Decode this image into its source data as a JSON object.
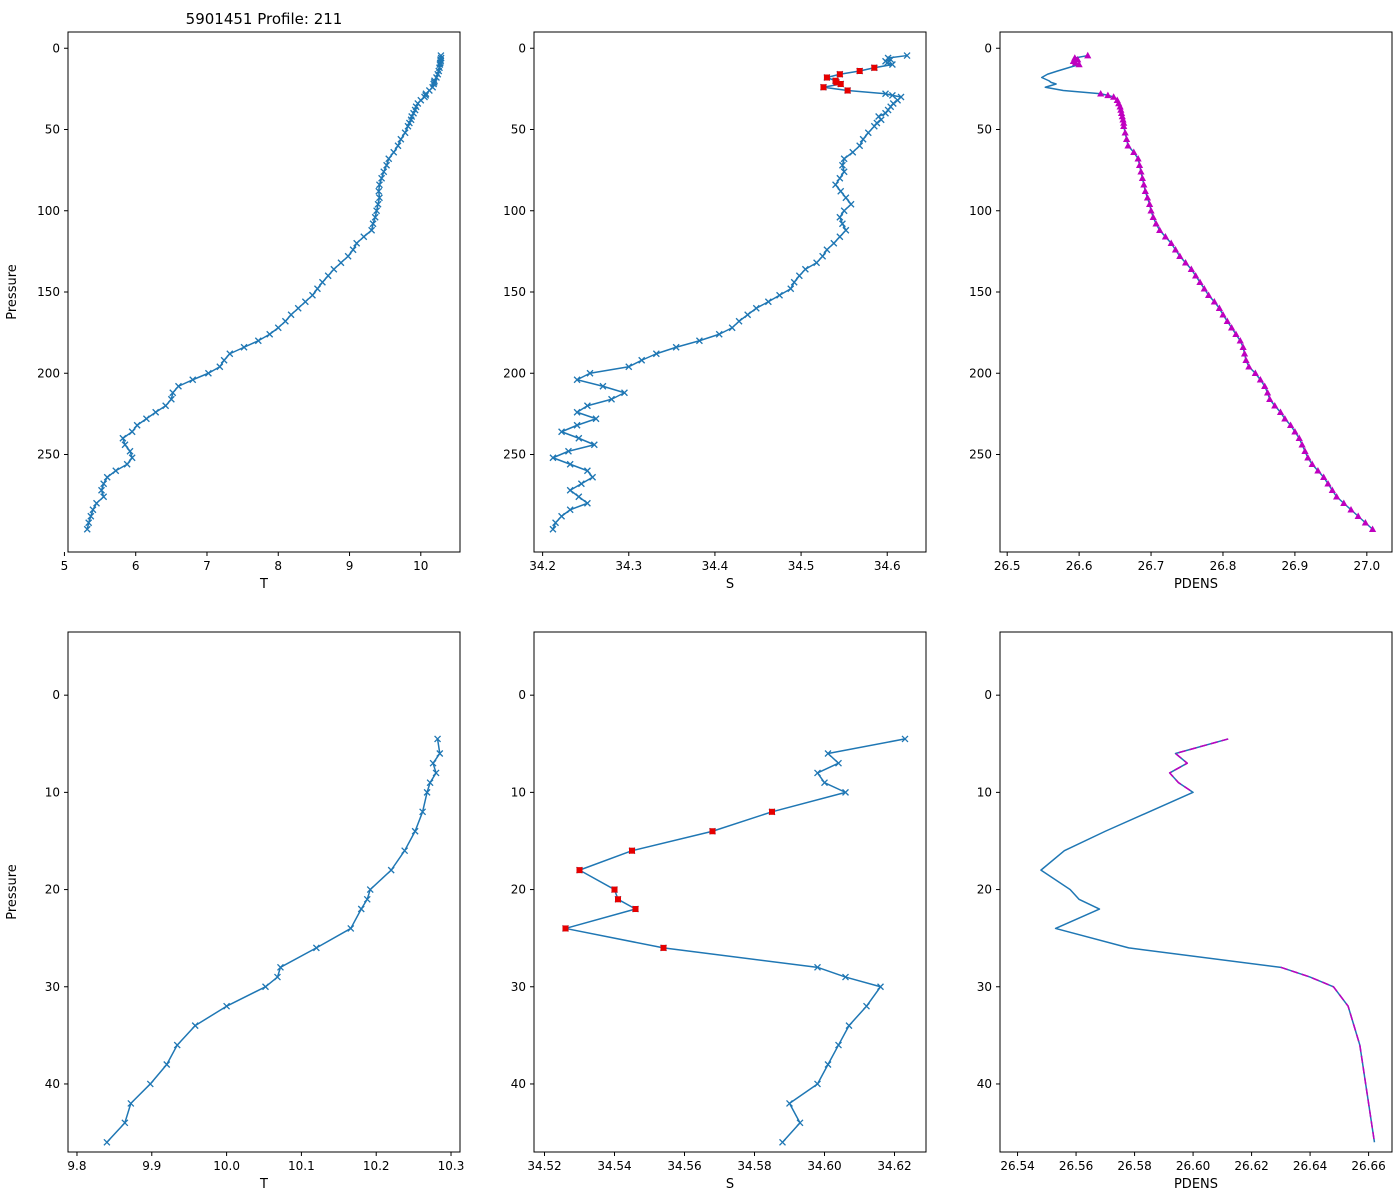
{
  "figure": {
    "title": "5901451 Profile: 211",
    "background": "#ffffff"
  },
  "colors": {
    "line_blue": "#1f77b4",
    "flag_red": "#e60000",
    "magenta": "#bf00bf",
    "axis": "#000000"
  },
  "profiles": {
    "pressure_shallow": [
      4.5,
      6,
      7,
      8,
      9,
      10,
      12,
      14,
      16,
      18,
      20,
      21,
      22,
      24,
      26,
      28,
      29,
      30,
      32,
      34,
      36,
      38,
      40,
      42,
      44,
      46
    ],
    "temp_shallow": [
      10.282,
      10.285,
      10.276,
      10.28,
      10.272,
      10.268,
      10.262,
      10.252,
      10.238,
      10.22,
      10.192,
      10.188,
      10.18,
      10.166,
      10.12,
      10.072,
      10.068,
      10.052,
      10.0,
      9.958,
      9.934,
      9.92,
      9.898,
      9.872,
      9.864,
      9.84
    ],
    "sal_shallow": [
      34.623,
      34.601,
      34.604,
      34.598,
      34.6,
      34.606,
      34.585,
      34.568,
      34.545,
      34.53,
      34.54,
      34.541,
      34.546,
      34.526,
      34.554,
      34.598,
      34.606,
      34.616,
      34.612,
      34.607,
      34.604,
      34.601,
      34.598,
      34.59,
      34.593,
      34.588
    ],
    "pdens_shallow": [
      26.612,
      26.594,
      26.598,
      26.592,
      26.595,
      26.6,
      26.585,
      26.57,
      26.556,
      26.548,
      26.558,
      26.561,
      26.568,
      26.553,
      26.578,
      26.63,
      26.64,
      26.648,
      26.653,
      26.655,
      26.657,
      26.658,
      26.659,
      26.66,
      26.661,
      26.662
    ],
    "pressure_deep": [
      48,
      52,
      56,
      60,
      64,
      68,
      72,
      76,
      80,
      84,
      88,
      92,
      96,
      100,
      104,
      108,
      112,
      116,
      120,
      124,
      128,
      132,
      136,
      140,
      144,
      148,
      152,
      156,
      160,
      164,
      168,
      172,
      176,
      180,
      184,
      188,
      192,
      196,
      200,
      204,
      208,
      212,
      216,
      220,
      224,
      228,
      232,
      236,
      240,
      244,
      248,
      252,
      256,
      260,
      264,
      268,
      272,
      276,
      280,
      284,
      288,
      292,
      296
    ],
    "temp_deep": [
      9.82,
      9.78,
      9.72,
      9.68,
      9.62,
      9.55,
      9.52,
      9.48,
      9.45,
      9.42,
      9.41,
      9.42,
      9.4,
      9.38,
      9.36,
      9.33,
      9.31,
      9.2,
      9.1,
      9.05,
      8.98,
      8.88,
      8.78,
      8.7,
      8.62,
      8.55,
      8.48,
      8.38,
      8.28,
      8.18,
      8.1,
      8.0,
      7.88,
      7.72,
      7.52,
      7.32,
      7.24,
      7.18,
      7.02,
      6.8,
      6.6,
      6.52,
      6.5,
      6.42,
      6.28,
      6.15,
      6.02,
      5.95,
      5.82,
      5.85,
      5.92,
      5.95,
      5.88,
      5.72,
      5.6,
      5.55,
      5.52,
      5.55,
      5.45,
      5.4,
      5.37,
      5.34,
      5.32
    ],
    "sal_deep": [
      34.585,
      34.578,
      34.572,
      34.568,
      34.56,
      34.55,
      34.548,
      34.55,
      34.545,
      34.54,
      34.546,
      34.552,
      34.558,
      34.55,
      34.545,
      34.548,
      34.552,
      34.545,
      34.538,
      34.53,
      34.525,
      34.518,
      34.505,
      34.498,
      34.492,
      34.488,
      34.475,
      34.462,
      34.448,
      34.438,
      34.428,
      34.42,
      34.405,
      34.382,
      34.355,
      34.332,
      34.315,
      34.3,
      34.255,
      34.24,
      34.27,
      34.295,
      34.28,
      34.252,
      34.24,
      34.262,
      34.24,
      34.222,
      34.242,
      34.26,
      34.23,
      34.212,
      34.232,
      34.252,
      34.258,
      34.245,
      34.232,
      34.242,
      34.252,
      34.232,
      34.222,
      34.215,
      34.212
    ],
    "pdens_deep": [
      26.662,
      26.664,
      26.666,
      26.668,
      26.676,
      26.682,
      26.684,
      26.686,
      26.688,
      26.69,
      26.692,
      26.695,
      26.698,
      26.7,
      26.703,
      26.707,
      26.712,
      26.72,
      26.728,
      26.734,
      26.74,
      26.748,
      26.756,
      26.762,
      26.768,
      26.774,
      26.78,
      26.788,
      26.795,
      26.8,
      26.806,
      26.812,
      26.818,
      26.824,
      26.828,
      26.83,
      26.832,
      26.836,
      26.845,
      26.852,
      26.858,
      26.862,
      26.865,
      26.872,
      26.88,
      26.886,
      26.894,
      26.9,
      26.906,
      26.91,
      26.914,
      26.918,
      26.924,
      26.932,
      26.94,
      26.946,
      26.952,
      26.958,
      26.968,
      26.978,
      26.988,
      26.998,
      27.008
    ],
    "flagged_idx": [
      6,
      7,
      8,
      9,
      10,
      11,
      12,
      13,
      14
    ],
    "good_head_idx": [
      0,
      1,
      2,
      3,
      4,
      5
    ],
    "good_tail_idx": [
      15,
      16,
      17,
      18,
      19,
      20,
      21,
      22,
      23,
      24,
      25
    ]
  },
  "chart_data": [
    {
      "id": "temp-full",
      "type": "line",
      "xlabel": "T",
      "ylabel": "Pressure",
      "xlim": [
        5.05,
        10.55
      ],
      "ylim": [
        -10,
        310
      ],
      "xticks": [
        5,
        6,
        7,
        8,
        9,
        10
      ],
      "xtick_labels": [
        "5",
        "6",
        "7",
        "8",
        "9",
        "10"
      ],
      "yticks": [
        0,
        50,
        100,
        150,
        200,
        250
      ],
      "ytick_labels": [
        "0",
        "50",
        "100",
        "150",
        "200",
        "250"
      ],
      "series": [
        {
          "name": "temperature-profile",
          "x": [
            "temp_shallow",
            "temp_deep"
          ],
          "y": [
            "pressure_shallow",
            "pressure_deep"
          ],
          "color": "line_blue",
          "marker": "x",
          "line": true
        }
      ]
    },
    {
      "id": "sal-full",
      "type": "line",
      "xlabel": "S",
      "ylabel": "",
      "xlim": [
        34.19,
        34.645
      ],
      "ylim": [
        -10,
        310
      ],
      "xticks": [
        34.2,
        34.3,
        34.4,
        34.5,
        34.6
      ],
      "xtick_labels": [
        "34.2",
        "34.3",
        "34.4",
        "34.5",
        "34.6"
      ],
      "yticks": [
        0,
        50,
        100,
        150,
        200,
        250
      ],
      "ytick_labels": [
        "0",
        "50",
        "100",
        "150",
        "200",
        "250"
      ],
      "series": [
        {
          "name": "salinity-profile",
          "x": [
            "sal_shallow",
            "sal_deep"
          ],
          "y": [
            "pressure_shallow",
            "pressure_deep"
          ],
          "color": "line_blue",
          "marker": "x",
          "line": true
        },
        {
          "name": "salinity-flagged",
          "x": "sal_shallow",
          "y": "pressure_shallow",
          "idx": "flagged_idx",
          "color": "flag_red",
          "marker": "s",
          "line": false
        }
      ]
    },
    {
      "id": "pdens-full",
      "type": "line",
      "xlabel": "PDENS",
      "ylabel": "",
      "xlim": [
        26.49,
        27.035
      ],
      "ylim": [
        -10,
        310
      ],
      "xticks": [
        26.5,
        26.6,
        26.7,
        26.8,
        26.9,
        27.0
      ],
      "xtick_labels": [
        "26.5",
        "26.6",
        "26.7",
        "26.8",
        "26.9",
        "27.0"
      ],
      "yticks": [
        0,
        50,
        100,
        150,
        200,
        250
      ],
      "ytick_labels": [
        "0",
        "50",
        "100",
        "150",
        "200",
        "250"
      ],
      "series": [
        {
          "name": "pdens-line",
          "x": [
            "pdens_shallow",
            "pdens_deep"
          ],
          "y": [
            "pressure_shallow",
            "pressure_deep"
          ],
          "color": "line_blue",
          "marker": null,
          "line": true
        },
        {
          "name": "pdens-good-shallow-top",
          "x": "pdens_shallow",
          "y": "pressure_shallow",
          "idx": "good_head_idx",
          "color": "magenta",
          "marker": "^",
          "line": false
        },
        {
          "name": "pdens-good-shallow-bottom",
          "x": "pdens_shallow",
          "y": "pressure_shallow",
          "idx": "good_tail_idx",
          "color": "magenta",
          "marker": "^",
          "line": false
        },
        {
          "name": "pdens-good-deep",
          "x": "pdens_deep",
          "y": "pressure_deep",
          "color": "magenta",
          "marker": "^",
          "line": false
        }
      ]
    },
    {
      "id": "temp-zoom",
      "type": "line",
      "xlabel": "T",
      "ylabel": "Pressure",
      "xlim": [
        9.788,
        10.312
      ],
      "ylim": [
        -6.5,
        47
      ],
      "xticks": [
        9.8,
        9.9,
        10.0,
        10.1,
        10.2,
        10.3
      ],
      "xtick_labels": [
        "9.8",
        "9.9",
        "10.0",
        "10.1",
        "10.2",
        "10.3"
      ],
      "yticks": [
        0,
        10,
        20,
        30,
        40
      ],
      "ytick_labels": [
        "0",
        "10",
        "20",
        "30",
        "40"
      ],
      "series": [
        {
          "name": "temperature-profile-zoom",
          "x": "temp_shallow",
          "y": "pressure_shallow",
          "color": "line_blue",
          "marker": "x",
          "line": true
        }
      ]
    },
    {
      "id": "sal-zoom",
      "type": "line",
      "xlabel": "S",
      "ylabel": "",
      "xlim": [
        34.517,
        34.629
      ],
      "ylim": [
        -6.5,
        47
      ],
      "xticks": [
        34.52,
        34.54,
        34.56,
        34.58,
        34.6,
        34.62
      ],
      "xtick_labels": [
        "34.52",
        "34.54",
        "34.56",
        "34.58",
        "34.60",
        "34.62"
      ],
      "yticks": [
        0,
        10,
        20,
        30,
        40
      ],
      "ytick_labels": [
        "0",
        "10",
        "20",
        "30",
        "40"
      ],
      "series": [
        {
          "name": "salinity-profile-zoom",
          "x": "sal_shallow",
          "y": "pressure_shallow",
          "color": "line_blue",
          "marker": "x",
          "line": true
        },
        {
          "name": "salinity-flagged-zoom",
          "x": "sal_shallow",
          "y": "pressure_shallow",
          "idx": "flagged_idx",
          "color": "flag_red",
          "marker": "s",
          "line": false
        }
      ]
    },
    {
      "id": "pdens-zoom",
      "type": "line",
      "xlabel": "PDENS",
      "ylabel": "",
      "xlim": [
        26.534,
        26.668
      ],
      "ylim": [
        -6.5,
        47
      ],
      "xticks": [
        26.54,
        26.56,
        26.58,
        26.6,
        26.62,
        26.64,
        26.66
      ],
      "xtick_labels": [
        "26.54",
        "26.56",
        "26.58",
        "26.60",
        "26.62",
        "26.64",
        "26.66"
      ],
      "yticks": [
        0,
        10,
        20,
        30,
        40
      ],
      "ytick_labels": [
        "0",
        "10",
        "20",
        "30",
        "40"
      ],
      "series": [
        {
          "name": "pdens-line-zoom",
          "x": "pdens_shallow",
          "y": "pressure_shallow",
          "color": "line_blue",
          "marker": null,
          "line": true
        },
        {
          "name": "pdens-good-top-zoom",
          "x": "pdens_shallow",
          "y": "pressure_shallow",
          "idx": "good_head_idx",
          "color": "magenta",
          "marker": null,
          "line": true,
          "dash": true
        },
        {
          "name": "pdens-good-bottom-zoom",
          "x": "pdens_shallow",
          "y": "pressure_shallow",
          "idx": "good_tail_idx",
          "color": "magenta",
          "marker": null,
          "line": true,
          "dash": true
        }
      ]
    }
  ]
}
